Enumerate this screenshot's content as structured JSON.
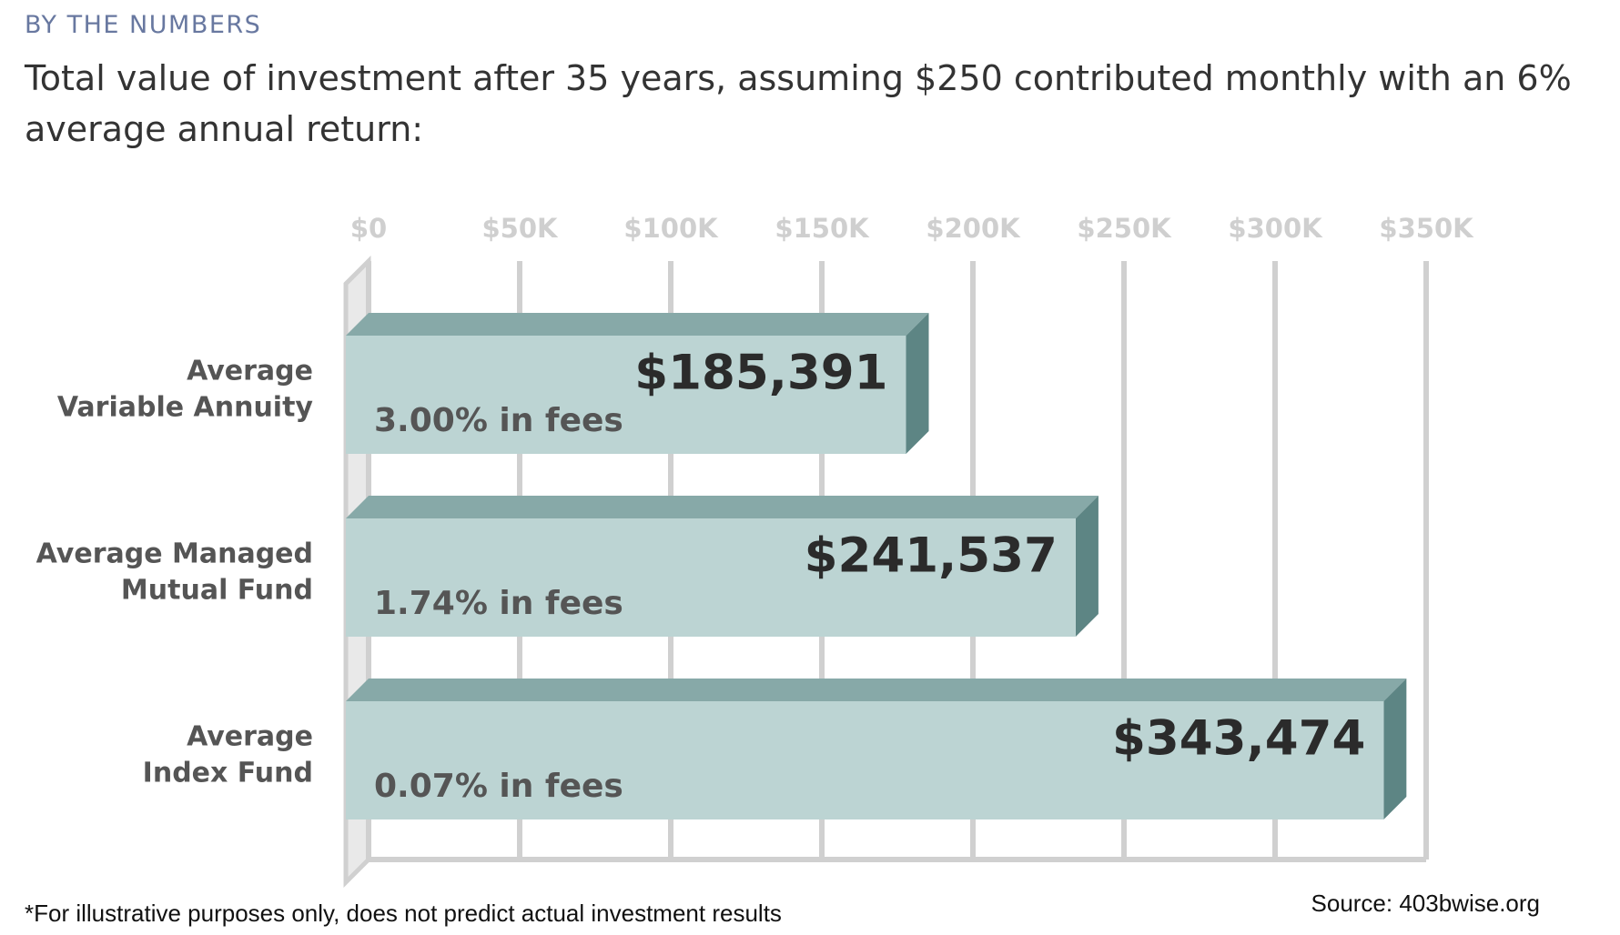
{
  "chart_data": {
    "type": "bar3d",
    "eyebrow": "BY THE NUMBERS",
    "title": "Total value of investment after 35 years, assuming $250 contributed monthly with an 6% average annual return:",
    "categories": [
      [
        "Average",
        "Variable Annuity"
      ],
      [
        "Average Managed",
        "Mutual Fund"
      ],
      [
        "Average",
        "Index Fund"
      ]
    ],
    "values": [
      185391,
      241537,
      343474
    ],
    "value_labels": [
      "$185,391",
      "$241,537",
      "$343,474"
    ],
    "fee_labels": [
      "3.00% in fees",
      "1.74% in fees",
      "0.07% in fees"
    ],
    "xlim": [
      0,
      350000
    ],
    "xticks": [
      {
        "value": 0,
        "label": "$0"
      },
      {
        "value": 50000,
        "label": "$50K"
      },
      {
        "value": 100000,
        "label": "$100K"
      },
      {
        "value": 150000,
        "label": "$150K"
      },
      {
        "value": 200000,
        "label": "$200K"
      },
      {
        "value": 250000,
        "label": "$250K"
      },
      {
        "value": 300000,
        "label": "$300K"
      },
      {
        "value": 350000,
        "label": "$350K"
      }
    ],
    "grid": true,
    "colors": {
      "front": "#bcd4d3",
      "top": "#87a9a8",
      "side": "#5d8584"
    },
    "footnote": "*For illustrative purposes only, does not predict actual investment results",
    "source": "Source: 403bwise.org"
  }
}
